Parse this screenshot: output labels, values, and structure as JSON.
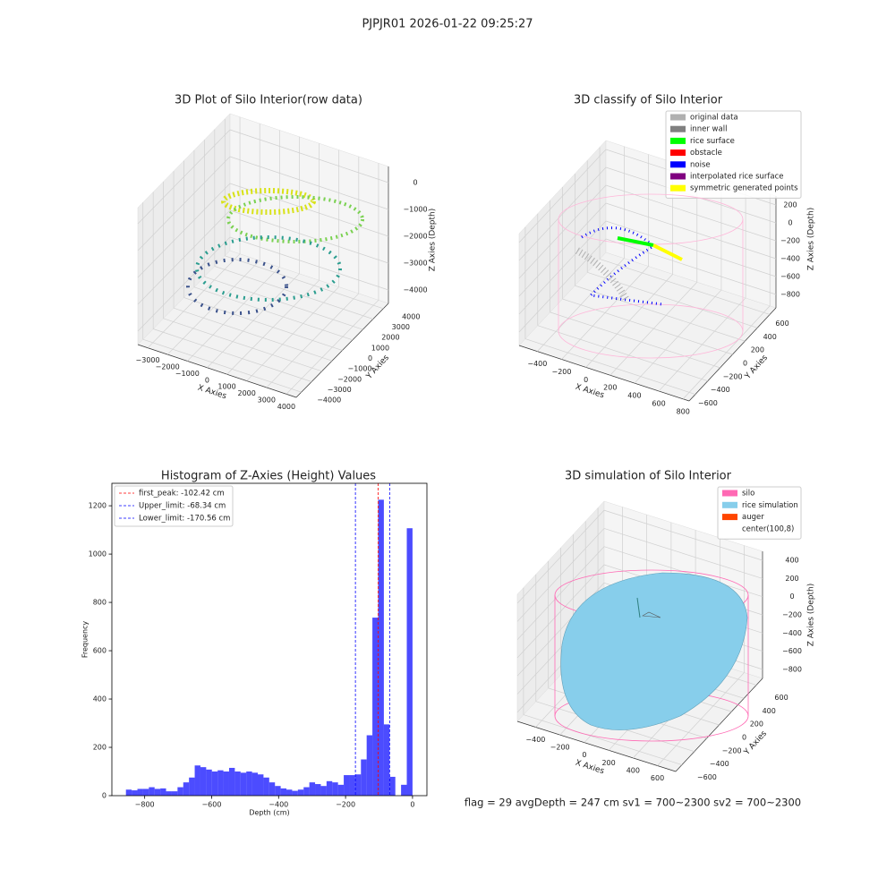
{
  "title": "PJPJR01 2026-01-22 09:25:27",
  "footer": "flag = 29  avgDepth = 247 cm  sv1 = 700~2300  sv2 = 700~2300",
  "chart_data": [
    {
      "type": "scatter3d",
      "title": "3D Plot of Silo Interior(row data)",
      "xlabel": "X Axies",
      "ylabel": "Y Axies",
      "zlabel": "Z Axies (Depth)",
      "xlim": [
        -3500,
        4500
      ],
      "ylim": [
        -4500,
        4500
      ],
      "zlim": [
        -4500,
        600
      ],
      "xticks": [
        {
          "value": -3000,
          "label": "−3000"
        },
        {
          "value": -2000,
          "label": "−2000"
        },
        {
          "value": -1000,
          "label": "−1000"
        },
        0,
        1000,
        2000,
        3000,
        4000
      ],
      "yticks": [
        {
          "value": -4000,
          "label": "−4000"
        },
        {
          "value": -3000,
          "label": "−3000"
        },
        {
          "value": -2000,
          "label": "−2000"
        },
        {
          "value": -1000,
          "label": "−1000"
        },
        0,
        1000,
        2000,
        3000,
        4000
      ],
      "zticks": [
        0,
        {
          "value": -1000,
          "label": "−1000"
        },
        {
          "value": -2000,
          "label": "−2000"
        },
        {
          "value": -3000,
          "label": "−3000"
        },
        {
          "value": -4000,
          "label": "−4000"
        }
      ]
    },
    {
      "type": "scatter3d",
      "title": "3D classify of Silo Interior",
      "xlabel": "X Axies",
      "ylabel": "Y Axies",
      "zlabel": "Z Axies (Depth)",
      "xlim": [
        -550,
        850
      ],
      "ylim": [
        -700,
        700
      ],
      "zlim": [
        -950,
        300
      ],
      "xticks": [
        {
          "value": -400,
          "label": "−400"
        },
        {
          "value": -200,
          "label": "−200"
        },
        0,
        200,
        400,
        600,
        800
      ],
      "yticks": [
        {
          "value": -600,
          "label": "−600"
        },
        {
          "value": -400,
          "label": "−400"
        },
        {
          "value": -200,
          "label": "−200"
        },
        0,
        200,
        400,
        600
      ],
      "zticks": [
        200,
        0,
        {
          "value": -200,
          "label": "−200"
        },
        {
          "value": -400,
          "label": "−400"
        },
        {
          "value": -600,
          "label": "−600"
        },
        {
          "value": -800,
          "label": "−800"
        }
      ],
      "series": [
        {
          "name": "original data",
          "color": "#b0b0b0"
        },
        {
          "name": "inner wall",
          "color": "#808080"
        },
        {
          "name": "rice surface",
          "color": "#00ff00"
        },
        {
          "name": "obstacle",
          "color": "#ff0000"
        },
        {
          "name": "noise",
          "color": "#0000ff"
        },
        {
          "name": "interpolated rice surface",
          "color": "#800080"
        },
        {
          "name": "symmetric generated points",
          "color": "#ffff00"
        }
      ]
    },
    {
      "type": "histogram",
      "title": "Histogram of Z-Axies (Height) Values",
      "xlabel": "Depth (cm)",
      "ylabel": "Frequency",
      "color": "#0000ff",
      "alpha": 0.7,
      "xlim": [
        -898,
        43
      ],
      "ylim": [
        0,
        1293
      ],
      "xticks": [
        {
          "value": -800,
          "label": "−800"
        },
        {
          "value": -600,
          "label": "−600"
        },
        {
          "value": -400,
          "label": "−400"
        },
        {
          "value": -200,
          "label": "−200"
        },
        0
      ],
      "yticks": [
        0,
        200,
        400,
        600,
        800,
        1000,
        1200
      ],
      "bins": [
        -856,
        -838.88,
        -821.76,
        -804.64,
        -787.52,
        -770.4,
        -753.28,
        -736.16,
        -719.04,
        -701.92,
        -684.8,
        -667.68,
        -650.56,
        -633.44,
        -616.32,
        -599.2,
        -582.08,
        -564.96,
        -547.84,
        -530.72,
        -513.6,
        -496.48,
        -479.36,
        -462.24,
        -445.12,
        -428,
        -410.88,
        -393.76,
        -376.64,
        -359.52,
        -342.4,
        -325.28,
        -308.16,
        -291.04,
        -273.92,
        -256.8,
        -239.68,
        -222.56,
        -205.44,
        -188.32,
        -171.2,
        -154.08,
        -136.96,
        -119.84,
        -102.72,
        -85.6,
        -68.48,
        -51.36,
        -34.24,
        -17.12,
        0
      ],
      "counts": [
        25,
        22,
        28,
        28,
        35,
        28,
        30,
        18,
        18,
        35,
        55,
        75,
        125,
        118,
        108,
        100,
        105,
        100,
        115,
        100,
        95,
        100,
        95,
        88,
        75,
        55,
        40,
        30,
        25,
        20,
        25,
        35,
        55,
        48,
        40,
        60,
        55,
        45,
        85,
        85,
        88,
        150,
        250,
        737,
        1225,
        295,
        78,
        0,
        45,
        1107
      ],
      "lines": [
        {
          "name": "first_peak: -102.42 cm",
          "value": -102.42,
          "color": "#ff0000"
        },
        {
          "name": "Upper_limit: -68.34 cm",
          "value": -68.34,
          "color": "#0000ff"
        },
        {
          "name": "Lower_limit: -170.56 cm",
          "value": -170.56,
          "color": "#0000ff"
        }
      ]
    },
    {
      "type": "surface3d",
      "title": "3D simulation of Silo Interior",
      "xlabel": "X Axies",
      "ylabel": "Y Axies",
      "zlabel": "Z Axies (Depth)",
      "xlim": [
        -550,
        750
      ],
      "ylim": [
        -700,
        700
      ],
      "zlim": [
        -900,
        500
      ],
      "xticks": [
        {
          "value": -400,
          "label": "−400"
        },
        {
          "value": -200,
          "label": "−200"
        },
        0,
        200,
        400,
        600
      ],
      "yticks": [
        {
          "value": -600,
          "label": "−600"
        },
        {
          "value": -400,
          "label": "−400"
        },
        {
          "value": -200,
          "label": "−200"
        },
        0,
        200,
        400,
        600
      ],
      "zticks": [
        400,
        200,
        0,
        {
          "value": -200,
          "label": "−200"
        },
        {
          "value": -400,
          "label": "−400"
        },
        {
          "value": -600,
          "label": "−600"
        },
        {
          "value": -800,
          "label": "−800"
        }
      ],
      "series": [
        {
          "name": "silo",
          "color": "#ff69b4"
        },
        {
          "name": "rice simulation",
          "color": "#87ceeb"
        },
        {
          "name": "auger",
          "color": "#ff4500"
        },
        {
          "name": "center(100,8)",
          "color": "#ffffff"
        }
      ]
    }
  ]
}
